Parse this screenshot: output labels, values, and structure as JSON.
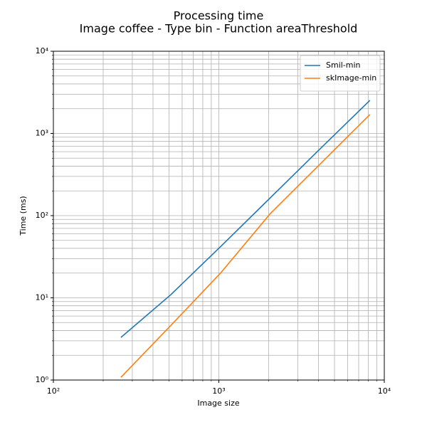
{
  "chart_data": {
    "type": "line",
    "title": "Processing time",
    "subtitle": "Image coffee - Type bin - Function areaThreshold",
    "x_label": "Image size",
    "y_label": "Time (ms)",
    "x": [
      256,
      512,
      1024,
      2048,
      4096,
      8192
    ],
    "series": [
      {
        "name": "Smil-min",
        "color": "#1f77b4",
        "values": [
          3.3,
          10.9,
          42,
          165,
          650,
          2530
        ]
      },
      {
        "name": "skImage-min",
        "color": "#ff7f0e",
        "values": [
          1.08,
          4.6,
          20,
          106,
          425,
          1700
        ]
      }
    ],
    "xlog": true,
    "ylog": true,
    "xlim": [
      100,
      10000
    ],
    "ylim": [
      1,
      10000
    ],
    "xticks": [
      {
        "value": 100,
        "label": "10²"
      },
      {
        "value": 1000,
        "label": "10³"
      },
      {
        "value": 10000,
        "label": "10⁴"
      }
    ],
    "yticks": [
      {
        "value": 1,
        "label": "10⁰"
      },
      {
        "value": 10,
        "label": "10¹"
      },
      {
        "value": 100,
        "label": "10²"
      },
      {
        "value": 1000,
        "label": "10³"
      },
      {
        "value": 10000,
        "label": "10⁴"
      }
    ],
    "grid": "both",
    "legend": "upper right"
  }
}
